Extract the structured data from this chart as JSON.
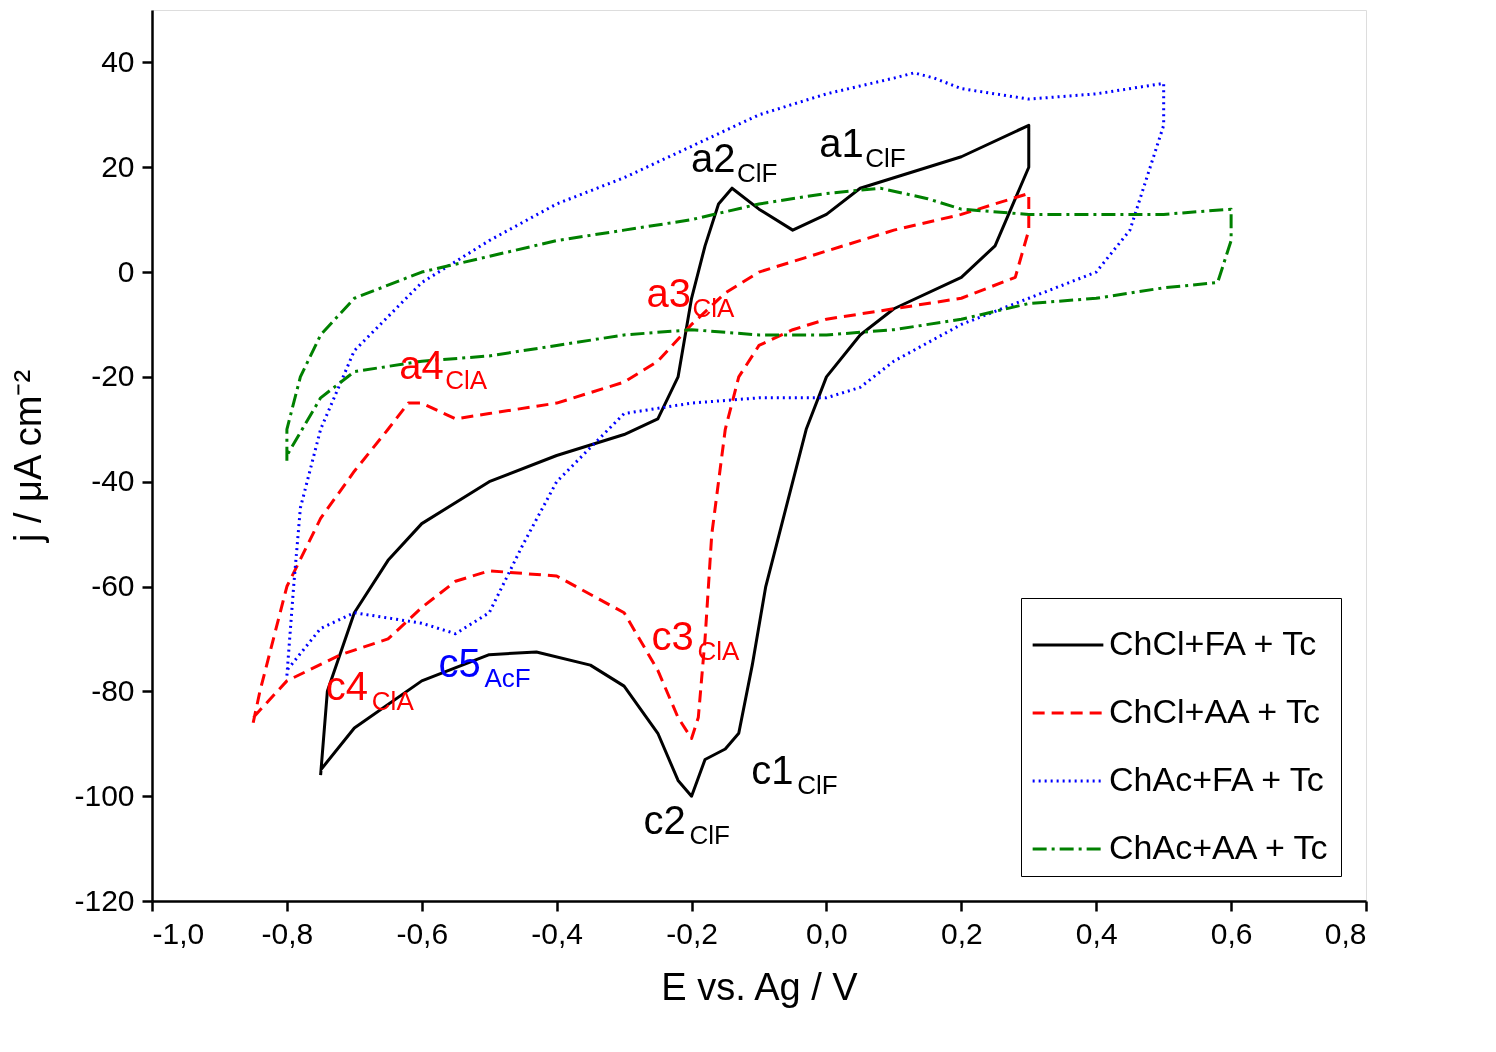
{
  "chart_data": {
    "type": "line",
    "xlabel": "E vs. Ag / V",
    "ylabel": "j / μA cm⁻²",
    "xlim": [
      -1.0,
      0.8
    ],
    "ylim": [
      -120,
      50
    ],
    "xticks": [
      {
        "value": -1.0,
        "label": "-1,0"
      },
      {
        "value": -0.8,
        "label": "-0,8"
      },
      {
        "value": -0.6,
        "label": "-0,6"
      },
      {
        "value": -0.4,
        "label": "-0,4"
      },
      {
        "value": -0.2,
        "label": "-0,2"
      },
      {
        "value": 0.0,
        "label": "0,0"
      },
      {
        "value": 0.2,
        "label": "0,2"
      },
      {
        "value": 0.4,
        "label": "0,4"
      },
      {
        "value": 0.6,
        "label": "0,6"
      },
      {
        "value": 0.8,
        "label": "0,8"
      }
    ],
    "yticks": [
      -120,
      -100,
      -80,
      -60,
      -40,
      -20,
      0,
      20,
      40
    ],
    "grid": false,
    "legend": "bottom right",
    "marker": "none",
    "series": [
      {
        "name": "ChCl+FA + Tc",
        "color": "#000000",
        "line_style": "solid",
        "x": [
          -0.75,
          -0.74,
          -0.7,
          -0.65,
          -0.6,
          -0.5,
          -0.4,
          -0.3,
          -0.25,
          -0.22,
          -0.2,
          -0.18,
          -0.16,
          -0.14,
          -0.1,
          -0.05,
          0.0,
          0.05,
          0.1,
          0.2,
          0.3,
          0.3,
          0.25,
          0.2,
          0.1,
          0.05,
          0.0,
          -0.03,
          -0.06,
          -0.09,
          -0.11,
          -0.13,
          -0.15,
          -0.18,
          -0.2,
          -0.22,
          -0.25,
          -0.3,
          -0.35,
          -0.43,
          -0.5,
          -0.6,
          -0.7,
          -0.75
        ],
        "values": [
          -96,
          -80,
          -65,
          -55,
          -48,
          -40,
          -35,
          -31,
          -28,
          -20,
          -5,
          5,
          13,
          16,
          12,
          8,
          11,
          16,
          18,
          22,
          28,
          20,
          5,
          -1,
          -7,
          -12,
          -20,
          -30,
          -45,
          -60,
          -75,
          -88,
          -91,
          -93,
          -100,
          -97,
          -88,
          -79,
          -75,
          -72.5,
          -73,
          -78,
          -87,
          -95
        ]
      },
      {
        "name": "ChCl+AA + Tc",
        "color": "#ff0000",
        "line_style": "dashed",
        "x": [
          -0.85,
          -0.84,
          -0.8,
          -0.75,
          -0.7,
          -0.65,
          -0.62,
          -0.6,
          -0.55,
          -0.5,
          -0.4,
          -0.3,
          -0.25,
          -0.2,
          -0.15,
          -0.1,
          0.0,
          0.1,
          0.2,
          0.3,
          0.3,
          0.28,
          0.2,
          0.1,
          0.0,
          -0.05,
          -0.1,
          -0.13,
          -0.15,
          -0.17,
          -0.18,
          -0.19,
          -0.2,
          -0.22,
          -0.25,
          -0.3,
          -0.4,
          -0.5,
          -0.55,
          -0.6,
          -0.65,
          -0.72,
          -0.8,
          -0.85
        ],
        "values": [
          -86,
          -80,
          -60,
          -47,
          -38,
          -30,
          -25,
          -25,
          -28,
          -27,
          -25,
          -21,
          -17,
          -10,
          -4,
          0,
          4,
          8,
          11,
          15,
          8,
          -1,
          -5,
          -7,
          -9,
          -11,
          -14,
          -20,
          -30,
          -50,
          -70,
          -85,
          -89,
          -85,
          -76,
          -65,
          -58,
          -57,
          -59,
          -64,
          -70,
          -73,
          -78,
          -85
        ]
      },
      {
        "name": "ChAc+FA + Tc",
        "color": "#0000ff",
        "line_style": "dotted",
        "x": [
          -0.8,
          -0.79,
          -0.78,
          -0.75,
          -0.7,
          -0.6,
          -0.5,
          -0.4,
          -0.3,
          -0.2,
          -0.1,
          0.0,
          0.1,
          0.13,
          0.16,
          0.2,
          0.3,
          0.4,
          0.5,
          0.5,
          0.48,
          0.45,
          0.4,
          0.3,
          0.2,
          0.1,
          0.05,
          0.0,
          -0.1,
          -0.2,
          -0.3,
          -0.4,
          -0.45,
          -0.5,
          -0.55,
          -0.6,
          -0.7,
          -0.75,
          -0.8
        ],
        "values": [
          -77,
          -60,
          -45,
          -30,
          -15,
          -2,
          6,
          13,
          18,
          24,
          30,
          34,
          37,
          38,
          37,
          35,
          33,
          34,
          36,
          28,
          20,
          8,
          0,
          -5,
          -10,
          -17,
          -22,
          -24,
          -24,
          -25,
          -27,
          -40,
          -52,
          -65,
          -69,
          -67,
          -65,
          -68,
          -76
        ]
      },
      {
        "name": "ChAc+AA + Tc",
        "color": "#008000",
        "line_style": "dashdot",
        "x": [
          -0.8,
          -0.8,
          -0.78,
          -0.75,
          -0.7,
          -0.6,
          -0.5,
          -0.4,
          -0.3,
          -0.2,
          -0.1,
          0.0,
          0.08,
          0.15,
          0.2,
          0.3,
          0.4,
          0.5,
          0.6,
          0.6,
          0.58,
          0.5,
          0.4,
          0.3,
          0.2,
          0.1,
          0.0,
          -0.1,
          -0.2,
          -0.3,
          -0.4,
          -0.5,
          -0.6,
          -0.7,
          -0.75,
          -0.8
        ],
        "values": [
          -36,
          -30,
          -20,
          -12,
          -5,
          0,
          3,
          6,
          8,
          10,
          13,
          15,
          16,
          14,
          12,
          11,
          11,
          11,
          12,
          6,
          -2,
          -3,
          -5,
          -6,
          -9,
          -11,
          -12,
          -12,
          -11,
          -12,
          -14,
          -16,
          -17,
          -19,
          -24,
          -35
        ]
      }
    ],
    "annotations": [
      {
        "text": "a2$_{ClF}$",
        "x": -0.14,
        "y": 16
      },
      {
        "text": "a1$_{ClF}$",
        "x": 0.05,
        "y": 16
      },
      {
        "text": "a3$_{ClA}$",
        "x": -0.2,
        "y": -10
      },
      {
        "text": "a4$_{ClA}$",
        "x": -0.62,
        "y": -25
      },
      {
        "text": "c4$_{ClA}$",
        "x": -0.72,
        "y": -73
      },
      {
        "text": "c5$_{AcF}$",
        "x": -0.55,
        "y": -69
      },
      {
        "text": "c3$_{ClA}$",
        "x": -0.2,
        "y": -89
      },
      {
        "text": "c1$_{ClF}$",
        "x": -0.15,
        "y": -91
      },
      {
        "text": "c2$_{ClF}$",
        "x": -0.2,
        "y": -100
      }
    ]
  }
}
